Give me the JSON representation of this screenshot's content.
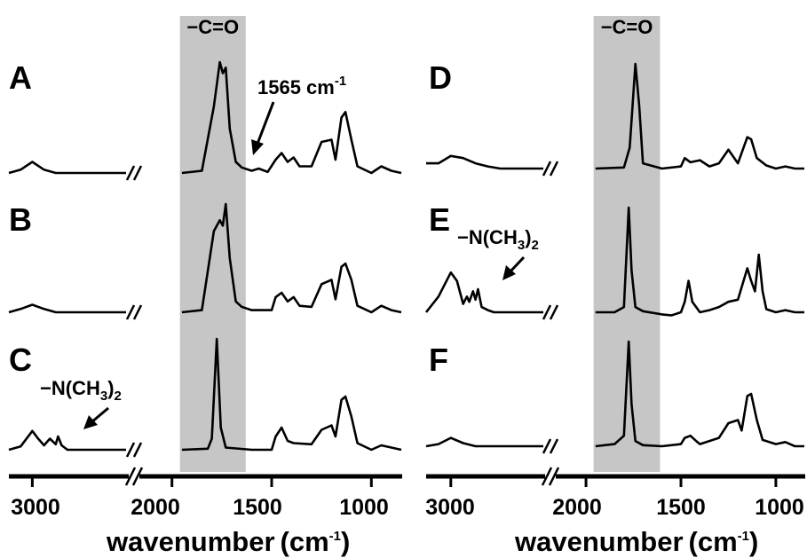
{
  "chart_data": [
    {
      "type": "line",
      "title": "",
      "xlabel": "wavenumber",
      "xlabel_unit": "(cm",
      "xlabel_unit_exp": "-1",
      "xlabel_unit_close": ")",
      "x_axis": "reversed, broken between 2200 and 2150",
      "xticks": [
        "3000",
        "2000",
        "1500",
        "1000"
      ],
      "highlight_band": {
        "label": "−C=O",
        "x_range": [
          1630,
          1960
        ]
      },
      "series": [
        {
          "label": "A",
          "points": [
            [
              3200,
              0.0
            ],
            [
              3100,
              0.03
            ],
            [
              3000,
              0.1
            ],
            [
              2900,
              0.03
            ],
            [
              2800,
              0.0
            ],
            [
              2200,
              0.0
            ],
            [
              1950,
              0.0
            ],
            [
              1850,
              0.02
            ],
            [
              1790,
              0.6
            ],
            [
              1760,
              1.0
            ],
            [
              1745,
              0.9
            ],
            [
              1730,
              0.95
            ],
            [
              1710,
              0.4
            ],
            [
              1680,
              0.1
            ],
            [
              1650,
              0.05
            ],
            [
              1600,
              0.02
            ],
            [
              1565,
              0.04
            ],
            [
              1520,
              0.01
            ],
            [
              1480,
              0.12
            ],
            [
              1450,
              0.18
            ],
            [
              1420,
              0.1
            ],
            [
              1390,
              0.14
            ],
            [
              1360,
              0.06
            ],
            [
              1300,
              0.06
            ],
            [
              1250,
              0.28
            ],
            [
              1200,
              0.3
            ],
            [
              1180,
              0.12
            ],
            [
              1150,
              0.5
            ],
            [
              1130,
              0.55
            ],
            [
              1100,
              0.3
            ],
            [
              1070,
              0.06
            ],
            [
              1000,
              0.0
            ],
            [
              950,
              0.06
            ],
            [
              900,
              0.02
            ],
            [
              850,
              0.0
            ]
          ]
        },
        {
          "label": "B",
          "points": [
            [
              3200,
              0.0
            ],
            [
              3100,
              0.03
            ],
            [
              3000,
              0.07
            ],
            [
              2900,
              0.03
            ],
            [
              2800,
              0.0
            ],
            [
              2200,
              0.0
            ],
            [
              1950,
              0.0
            ],
            [
              1850,
              0.02
            ],
            [
              1790,
              0.75
            ],
            [
              1760,
              0.85
            ],
            [
              1745,
              0.8
            ],
            [
              1730,
              1.0
            ],
            [
              1710,
              0.5
            ],
            [
              1680,
              0.1
            ],
            [
              1650,
              0.05
            ],
            [
              1600,
              0.02
            ],
            [
              1500,
              0.02
            ],
            [
              1480,
              0.14
            ],
            [
              1450,
              0.18
            ],
            [
              1420,
              0.1
            ],
            [
              1390,
              0.14
            ],
            [
              1360,
              0.06
            ],
            [
              1300,
              0.05
            ],
            [
              1250,
              0.26
            ],
            [
              1200,
              0.3
            ],
            [
              1180,
              0.12
            ],
            [
              1150,
              0.42
            ],
            [
              1130,
              0.45
            ],
            [
              1100,
              0.3
            ],
            [
              1070,
              0.06
            ],
            [
              1000,
              0.0
            ],
            [
              950,
              0.06
            ],
            [
              900,
              0.02
            ],
            [
              850,
              0.0
            ]
          ]
        },
        {
          "label": "C",
          "points": [
            [
              3200,
              0.0
            ],
            [
              3100,
              0.03
            ],
            [
              3000,
              0.17
            ],
            [
              2950,
              0.1
            ],
            [
              2900,
              0.04
            ],
            [
              2850,
              0.1
            ],
            [
              2800,
              0.05
            ],
            [
              2780,
              0.12
            ],
            [
              2750,
              0.04
            ],
            [
              2700,
              0.0
            ],
            [
              2200,
              0.0
            ],
            [
              1950,
              0.0
            ],
            [
              1820,
              0.01
            ],
            [
              1800,
              0.1
            ],
            [
              1775,
              1.0
            ],
            [
              1755,
              0.2
            ],
            [
              1730,
              0.02
            ],
            [
              1600,
              0.0
            ],
            [
              1500,
              0.0
            ],
            [
              1480,
              0.12
            ],
            [
              1450,
              0.2
            ],
            [
              1420,
              0.08
            ],
            [
              1390,
              0.06
            ],
            [
              1300,
              0.05
            ],
            [
              1250,
              0.18
            ],
            [
              1200,
              0.22
            ],
            [
              1180,
              0.12
            ],
            [
              1150,
              0.45
            ],
            [
              1130,
              0.48
            ],
            [
              1100,
              0.3
            ],
            [
              1070,
              0.06
            ],
            [
              1000,
              0.0
            ],
            [
              950,
              0.04
            ],
            [
              900,
              0.02
            ],
            [
              850,
              0.0
            ]
          ]
        }
      ]
    },
    {
      "type": "line",
      "title": "",
      "xlabel": "wavenumber",
      "xlabel_unit": "(cm",
      "xlabel_unit_exp": "-1",
      "xlabel_unit_close": ")",
      "x_axis": "reversed, broken between 2250 and 2150",
      "xticks": [
        "3000",
        "2000",
        "1500",
        "1000"
      ],
      "highlight_band": {
        "label": "−C=O",
        "x_range": [
          1610,
          1960
        ]
      },
      "series": [
        {
          "label": "D",
          "points": [
            [
              3200,
              0.05
            ],
            [
              3100,
              0.05
            ],
            [
              3000,
              0.12
            ],
            [
              2900,
              0.1
            ],
            [
              2800,
              0.05
            ],
            [
              2700,
              0.02
            ],
            [
              2600,
              0.0
            ],
            [
              2250,
              0.0
            ],
            [
              1950,
              0.0
            ],
            [
              1800,
              0.01
            ],
            [
              1770,
              0.2
            ],
            [
              1740,
              1.0
            ],
            [
              1720,
              0.6
            ],
            [
              1700,
              0.05
            ],
            [
              1600,
              0.0
            ],
            [
              1500,
              0.02
            ],
            [
              1480,
              0.1
            ],
            [
              1450,
              0.06
            ],
            [
              1400,
              0.08
            ],
            [
              1350,
              0.02
            ],
            [
              1300,
              0.05
            ],
            [
              1250,
              0.18
            ],
            [
              1200,
              0.05
            ],
            [
              1150,
              0.3
            ],
            [
              1130,
              0.28
            ],
            [
              1100,
              0.1
            ],
            [
              1050,
              0.03
            ],
            [
              1000,
              0.0
            ],
            [
              950,
              0.02
            ],
            [
              900,
              0.0
            ],
            [
              850,
              0.0
            ]
          ]
        },
        {
          "label": "E",
          "points": [
            [
              3200,
              0.0
            ],
            [
              3100,
              0.15
            ],
            [
              3000,
              0.38
            ],
            [
              2950,
              0.3
            ],
            [
              2900,
              0.08
            ],
            [
              2870,
              0.15
            ],
            [
              2850,
              0.1
            ],
            [
              2820,
              0.2
            ],
            [
              2800,
              0.12
            ],
            [
              2780,
              0.22
            ],
            [
              2750,
              0.05
            ],
            [
              2700,
              0.02
            ],
            [
              2650,
              0.0
            ],
            [
              2250,
              0.0
            ],
            [
              1950,
              0.0
            ],
            [
              1850,
              0.0
            ],
            [
              1800,
              0.05
            ],
            [
              1775,
              1.0
            ],
            [
              1760,
              0.4
            ],
            [
              1740,
              0.05
            ],
            [
              1700,
              0.01
            ],
            [
              1600,
              -0.02
            ],
            [
              1550,
              -0.03
            ],
            [
              1500,
              0.0
            ],
            [
              1480,
              0.1
            ],
            [
              1460,
              0.3
            ],
            [
              1440,
              0.1
            ],
            [
              1400,
              0.0
            ],
            [
              1350,
              0.02
            ],
            [
              1300,
              0.05
            ],
            [
              1250,
              0.1
            ],
            [
              1200,
              0.12
            ],
            [
              1150,
              0.42
            ],
            [
              1130,
              0.3
            ],
            [
              1110,
              0.2
            ],
            [
              1090,
              0.55
            ],
            [
              1070,
              0.2
            ],
            [
              1050,
              0.03
            ],
            [
              1000,
              0.0
            ],
            [
              950,
              0.02
            ],
            [
              900,
              0.0
            ],
            [
              850,
              0.0
            ]
          ]
        },
        {
          "label": "F",
          "points": [
            [
              3200,
              0.0
            ],
            [
              3100,
              0.02
            ],
            [
              3000,
              0.08
            ],
            [
              2900,
              0.03
            ],
            [
              2800,
              0.0
            ],
            [
              2250,
              0.0
            ],
            [
              1950,
              0.0
            ],
            [
              1850,
              0.02
            ],
            [
              1800,
              0.1
            ],
            [
              1775,
              1.0
            ],
            [
              1760,
              0.4
            ],
            [
              1740,
              0.05
            ],
            [
              1700,
              0.01
            ],
            [
              1600,
              0.0
            ],
            [
              1500,
              0.02
            ],
            [
              1480,
              0.08
            ],
            [
              1450,
              0.1
            ],
            [
              1420,
              0.05
            ],
            [
              1400,
              0.02
            ],
            [
              1350,
              0.05
            ],
            [
              1300,
              0.08
            ],
            [
              1250,
              0.22
            ],
            [
              1200,
              0.25
            ],
            [
              1180,
              0.15
            ],
            [
              1150,
              0.48
            ],
            [
              1130,
              0.5
            ],
            [
              1100,
              0.25
            ],
            [
              1070,
              0.06
            ],
            [
              1000,
              0.02
            ],
            [
              950,
              0.04
            ],
            [
              900,
              0.0
            ],
            [
              850,
              0.0
            ]
          ]
        }
      ]
    }
  ],
  "annotations": {
    "peak_label": {
      "text": "1565 cm",
      "exp": "-1"
    },
    "amine_C": {
      "prefix": "−N(CH",
      "sub": "3",
      "suffix": ")",
      "sub2": "2"
    },
    "amine_E": {
      "prefix": "−N(CH",
      "sub": "3",
      "suffix": ")",
      "sub2": "2"
    }
  }
}
